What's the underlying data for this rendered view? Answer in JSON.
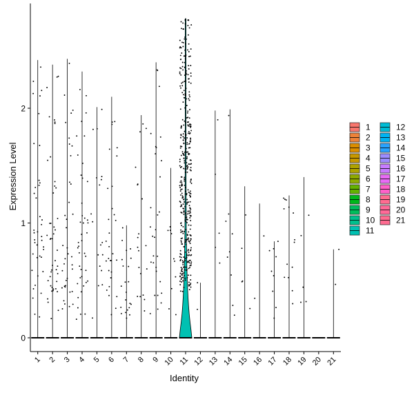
{
  "chart_data": {
    "type": "violin",
    "title": "",
    "xlabel": "Identity",
    "ylabel": "Expression Level",
    "ylim": [
      0,
      2.8
    ],
    "yticks": [
      0,
      1,
      2
    ],
    "categories": [
      "1",
      "2",
      "3",
      "4",
      "5",
      "6",
      "7",
      "8",
      "9",
      "10",
      "11",
      "12",
      "13",
      "14",
      "15",
      "16",
      "17",
      "18",
      "19",
      "20",
      "21"
    ],
    "legend": {
      "position": "right",
      "columns": 2,
      "entries": [
        {
          "label": "1",
          "color": "#F8766D"
        },
        {
          "label": "2",
          "color": "#EC8239"
        },
        {
          "label": "3",
          "color": "#DB8E00"
        },
        {
          "label": "4",
          "color": "#C79800"
        },
        {
          "label": "5",
          "color": "#AEA200"
        },
        {
          "label": "6",
          "color": "#8FAA00"
        },
        {
          "label": "7",
          "color": "#64B200"
        },
        {
          "label": "8",
          "color": "#00B81B"
        },
        {
          "label": "9",
          "color": "#00BD5C"
        },
        {
          "label": "10",
          "color": "#00C08D"
        },
        {
          "label": "11",
          "color": "#00C1B2"
        },
        {
          "label": "12",
          "color": "#00BCD6"
        },
        {
          "label": "13",
          "color": "#00B3F2"
        },
        {
          "label": "14",
          "color": "#29A3FF"
        },
        {
          "label": "15",
          "color": "#9C8DFF"
        },
        {
          "label": "16",
          "color": "#C77CFF"
        },
        {
          "label": "17",
          "color": "#E86BF5"
        },
        {
          "label": "18",
          "color": "#FF61C9"
        },
        {
          "label": "19",
          "color": "#FF6C91"
        },
        {
          "label": "20",
          "color": "#FF6A98"
        },
        {
          "label": "21",
          "color": "#FF6C91"
        }
      ]
    },
    "series": [
      {
        "name": "1",
        "max": 2.42,
        "nonzero_points": 40
      },
      {
        "name": "2",
        "max": 2.38,
        "nonzero_points": 45
      },
      {
        "name": "3",
        "max": 2.43,
        "nonzero_points": 38
      },
      {
        "name": "4",
        "max": 2.32,
        "nonzero_points": 42
      },
      {
        "name": "5",
        "max": 2.01,
        "nonzero_points": 18
      },
      {
        "name": "6",
        "max": 2.1,
        "nonzero_points": 30
      },
      {
        "name": "7",
        "max": 0.98,
        "nonzero_points": 22
      },
      {
        "name": "8",
        "max": 1.94,
        "nonzero_points": 20
      },
      {
        "name": "9",
        "max": 2.4,
        "nonzero_points": 30
      },
      {
        "name": "10",
        "max": 1.48,
        "nonzero_points": 10
      },
      {
        "name": "11",
        "max": 2.78,
        "nonzero_points": 420
      },
      {
        "name": "12",
        "max": 0.48,
        "nonzero_points": 2
      },
      {
        "name": "13",
        "max": 1.98,
        "nonzero_points": 5
      },
      {
        "name": "14",
        "max": 1.99,
        "nonzero_points": 9
      },
      {
        "name": "15",
        "max": 1.32,
        "nonzero_points": 5
      },
      {
        "name": "16",
        "max": 1.17,
        "nonzero_points": 2
      },
      {
        "name": "17",
        "max": 0.84,
        "nonzero_points": 9
      },
      {
        "name": "18",
        "max": 1.24,
        "nonzero_points": 14
      },
      {
        "name": "19",
        "max": 1.4,
        "nonzero_points": 5
      },
      {
        "name": "20",
        "max": 0.0,
        "nonzero_points": 0
      },
      {
        "name": "21",
        "max": 0.77,
        "nonzero_points": 2
      }
    ]
  }
}
